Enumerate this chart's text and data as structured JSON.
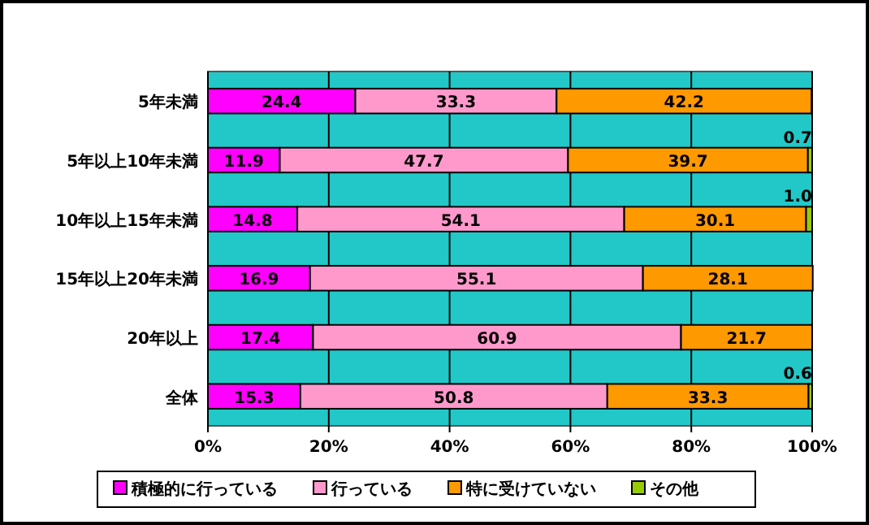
{
  "chart_data": {
    "type": "bar",
    "orientation": "horizontal",
    "stacked": true,
    "data_labels": true,
    "grid": "x",
    "legend": "bottom",
    "categories": [
      "5年未満",
      "5年以上10年未満",
      "10年以上15年未満",
      "15年以上20年未満",
      "20年以上",
      "全体"
    ],
    "xlim": [
      0,
      100
    ],
    "xticks": [
      {
        "value": 0,
        "label": "0%"
      },
      {
        "value": 20,
        "label": "20%"
      },
      {
        "value": 40,
        "label": "40%"
      },
      {
        "value": 60,
        "label": "60%"
      },
      {
        "value": 80,
        "label": "80%"
      },
      {
        "value": 100,
        "label": "100%"
      }
    ],
    "series": [
      {
        "name": "積極的に行っている",
        "color": "#ff00ff",
        "values": [
          24.4,
          11.9,
          14.8,
          16.9,
          17.4,
          15.3
        ]
      },
      {
        "name": "行っている",
        "color": "#ff99cc",
        "values": [
          33.3,
          47.7,
          54.1,
          55.1,
          60.9,
          50.8
        ]
      },
      {
        "name": "特に受けていない",
        "color": "#ff9900",
        "values": [
          42.2,
          39.7,
          30.1,
          28.1,
          21.7,
          33.3
        ]
      },
      {
        "name": "その他",
        "color": "#99cc00",
        "values": [
          null,
          0.7,
          1.0,
          null,
          null,
          0.6
        ],
        "value_labels": [
          null,
          "0.7",
          "1.0",
          null,
          null,
          "0.6"
        ]
      }
    ]
  }
}
